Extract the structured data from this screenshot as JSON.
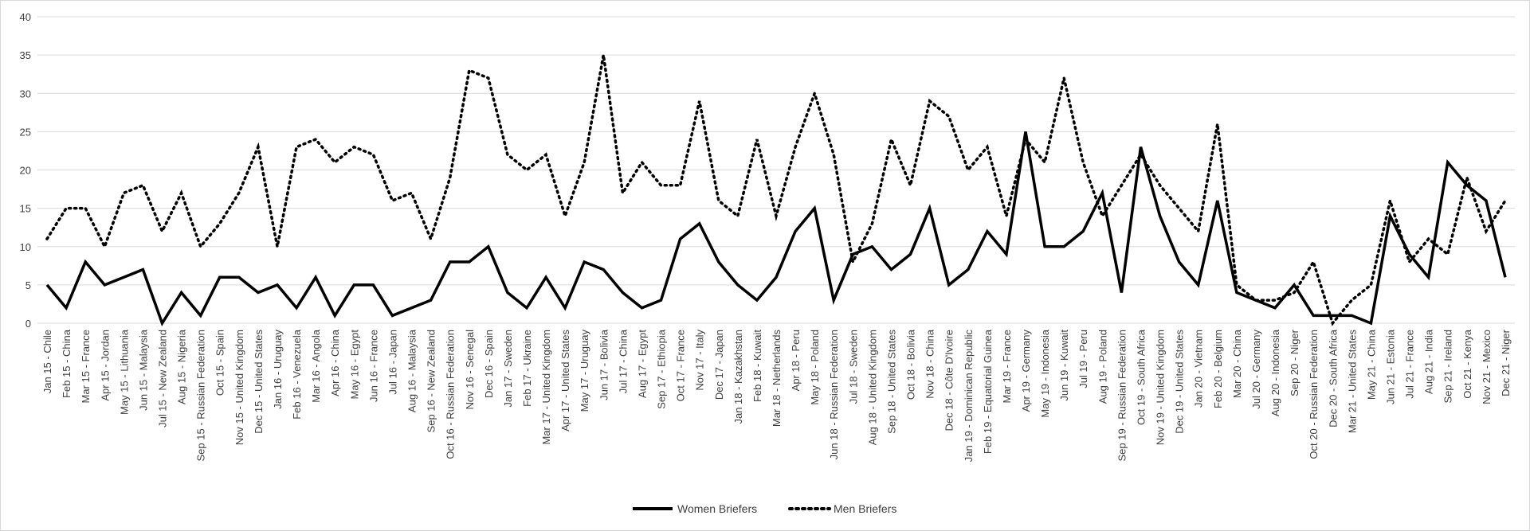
{
  "chart_data": {
    "type": "line",
    "title": "",
    "xlabel": "",
    "ylabel": "",
    "ylim": [
      0,
      40
    ],
    "yticks": [
      0,
      5,
      10,
      15,
      20,
      25,
      30,
      35,
      40
    ],
    "grid": "horizontal",
    "legend_position": "bottom-center",
    "categories": [
      "Jan 15 - Chile",
      "Feb 15 - China",
      "Mar 15 - France",
      "Apr 15 - Jordan",
      "May 15 - Lithuania",
      "Jun 15 - Malaysia",
      "Jul 15 - New Zealand",
      "Aug 15 - Nigeria",
      "Sep 15 - Russian Federation",
      "Oct 15 - Spain",
      "Nov 15 - United Kingdom",
      "Dec 15 - United States",
      "Jan 16 - Uruguay",
      "Feb 16 - Venezuela",
      "Mar 16 - Angola",
      "Apr 16 - China",
      "May 16 - Egypt",
      "Jun 16 - France",
      "Jul 16 - Japan",
      "Aug 16 - Malaysia",
      "Sep 16 - New Zealand",
      "Oct 16 - Russian Federation",
      "Nov 16 - Senegal",
      "Dec 16 - Spain",
      "Jan 17 - Sweden",
      "Feb 17 - Ukraine",
      "Mar 17 - United Kingdom",
      "Apr 17 - United States",
      "May 17 - Uruguay",
      "Jun 17 - Bolivia",
      "Jul 17 - China",
      "Aug 17 - Egypt",
      "Sep 17 - Ethiopia",
      "Oct 17 - France",
      "Nov 17 - Italy",
      "Dec 17 - Japan",
      "Jan 18 - Kazakhstan",
      "Feb 18 - Kuwait",
      "Mar 18 - Netherlands",
      "Apr 18 - Peru",
      "May 18 - Poland",
      "Jun 18 - Russian Federation",
      "Jul 18 - Sweden",
      "Aug 18 - United Kingdom",
      "Sep 18 - United States",
      "Oct 18 - Bolivia",
      "Nov 18 - China",
      "Dec 18 - Côte D'Ivoire",
      "Jan 19 - Dominican Republic",
      "Feb 19 - Equatorial Guinea",
      "Mar 19 - France",
      "Apr 19 - Germany",
      "May 19 - Indonesia",
      "Jun 19 - Kuwait",
      "Jul 19 - Peru",
      "Aug 19 - Poland",
      "Sep 19 - Russian Federation",
      "Oct 19 - South Africa",
      "Nov 19 - United Kingdom",
      "Dec 19 - United States",
      "Jan 20 - Vietnam",
      "Feb 20 - Belgium",
      "Mar 20 - China",
      "Jul 20 - Germany",
      "Aug 20 - Indonesia",
      "Sep 20 - Niger",
      "Oct 20 - Russian Federation",
      "Dec 20 - South Africa",
      "Mar 21 - United States",
      "May 21 - China",
      "Jun 21 - Estonia",
      "Jul 21 - France",
      "Aug 21 - India",
      "Sep 21 - Ireland",
      "Oct 21 - Kenya",
      "Nov 21 - Mexico",
      "Dec 21 - Niger"
    ],
    "series": [
      {
        "name": "Women Briefers",
        "style": "solid",
        "color": "#000000",
        "values": [
          5,
          2,
          8,
          5,
          6,
          7,
          0,
          4,
          1,
          6,
          6,
          4,
          5,
          2,
          6,
          1,
          5,
          5,
          1,
          2,
          3,
          8,
          8,
          10,
          4,
          2,
          6,
          2,
          8,
          7,
          4,
          2,
          3,
          11,
          13,
          8,
          5,
          3,
          6,
          12,
          15,
          3,
          9,
          10,
          7,
          9,
          15,
          5,
          7,
          12,
          9,
          25,
          10,
          10,
          12,
          17,
          4,
          23,
          14,
          8,
          5,
          16,
          4,
          3,
          2,
          5,
          1,
          1,
          1,
          0,
          14,
          9,
          6,
          21,
          18,
          16,
          6
        ]
      },
      {
        "name": "Men Briefers",
        "style": "dotted",
        "color": "#000000",
        "values": [
          11,
          15,
          15,
          10,
          17,
          18,
          12,
          17,
          10,
          13,
          17,
          23,
          10,
          23,
          24,
          21,
          23,
          22,
          16,
          17,
          11,
          19,
          33,
          32,
          22,
          20,
          22,
          14,
          21,
          35,
          17,
          21,
          18,
          18,
          29,
          16,
          14,
          24,
          14,
          23,
          30,
          22,
          8,
          13,
          24,
          18,
          29,
          27,
          20,
          23,
          14,
          24,
          21,
          32,
          21,
          14,
          18,
          22,
          18,
          15,
          12,
          26,
          5,
          3,
          3,
          4,
          8,
          0,
          3,
          5,
          16,
          8,
          11,
          9,
          19,
          12,
          16
        ]
      }
    ]
  }
}
